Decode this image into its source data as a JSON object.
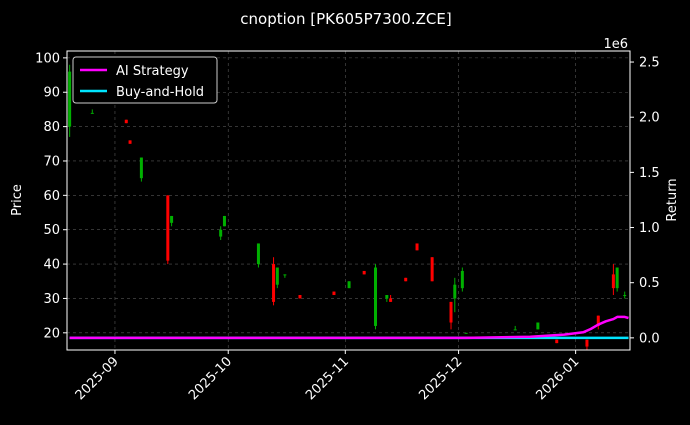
{
  "chart_data": {
    "type": "candlestick",
    "title": "cnoption [PK605P7300.ZCE]",
    "ylabel": "Price",
    "y2label": "Return",
    "y2_multiplier": "1e6",
    "ylim": [
      15,
      102
    ],
    "y2lim": [
      -0.11,
      2.6
    ],
    "yticks": [
      20,
      30,
      40,
      50,
      60,
      70,
      80,
      90,
      100
    ],
    "y2ticks": [
      0.0,
      0.5,
      1.0,
      1.5,
      2.0,
      2.5
    ],
    "y2ticklabels": [
      "0.0",
      "0.5",
      "1.0",
      "1.5",
      "2.0",
      "2.5"
    ],
    "xlim": [
      "2025-08-20",
      "2026-01-15"
    ],
    "xticks": [
      "2025-09-01",
      "2025-10-01",
      "2025-11-01",
      "2025-12-01",
      "2026-01-01"
    ],
    "xticklabels": [
      "2025-09",
      "2025-10",
      "2025-11",
      "2025-12",
      "2026-01"
    ],
    "grid": true,
    "legend_position": "top-left",
    "colors": {
      "background": "#000000",
      "up": "#00b000",
      "down": "#ff0000",
      "ai_strategy": "#ff00ff",
      "buy_and_hold": "#00e5ff",
      "grid": "#555555"
    },
    "candles": [
      {
        "date": "2025-08-20",
        "open": 80,
        "high": 98,
        "low": 77,
        "close": 96
      },
      {
        "date": "2025-08-26",
        "open": 84,
        "high": 85,
        "low": 84,
        "close": 84
      },
      {
        "date": "2025-09-04",
        "open": 82,
        "high": 82,
        "low": 81,
        "close": 81
      },
      {
        "date": "2025-09-05",
        "open": 76,
        "high": 76,
        "low": 75,
        "close": 75
      },
      {
        "date": "2025-09-08",
        "open": 65,
        "high": 71,
        "low": 64,
        "close": 71
      },
      {
        "date": "2025-09-15",
        "open": 60,
        "high": 60,
        "low": 40,
        "close": 41
      },
      {
        "date": "2025-09-16",
        "open": 52,
        "high": 54,
        "low": 51,
        "close": 54
      },
      {
        "date": "2025-09-29",
        "open": 48,
        "high": 51,
        "low": 47,
        "close": 50
      },
      {
        "date": "2025-09-30",
        "open": 51,
        "high": 54,
        "low": 51,
        "close": 54
      },
      {
        "date": "2025-10-09",
        "open": 40,
        "high": 46,
        "low": 39,
        "close": 46
      },
      {
        "date": "2025-10-13",
        "open": 40,
        "high": 42,
        "low": 28,
        "close": 29
      },
      {
        "date": "2025-10-14",
        "open": 34,
        "high": 39,
        "low": 33,
        "close": 39
      },
      {
        "date": "2025-10-16",
        "open": 37,
        "high": 37,
        "low": 36,
        "close": 37
      },
      {
        "date": "2025-10-20",
        "open": 31,
        "high": 31,
        "low": 30,
        "close": 30
      },
      {
        "date": "2025-10-29",
        "open": 32,
        "high": 32,
        "low": 31,
        "close": 31
      },
      {
        "date": "2025-11-02",
        "open": 33,
        "high": 35,
        "low": 33,
        "close": 35
      },
      {
        "date": "2025-11-06",
        "open": 38,
        "high": 38,
        "low": 37,
        "close": 37
      },
      {
        "date": "2025-11-09",
        "open": 22,
        "high": 40,
        "low": 21,
        "close": 39
      },
      {
        "date": "2025-11-12",
        "open": 30,
        "high": 31,
        "low": 29,
        "close": 31
      },
      {
        "date": "2025-11-13",
        "open": 30,
        "high": 31,
        "low": 29,
        "close": 29
      },
      {
        "date": "2025-11-17",
        "open": 36,
        "high": 36,
        "low": 35,
        "close": 35
      },
      {
        "date": "2025-11-20",
        "open": 46,
        "high": 46,
        "low": 44,
        "close": 44
      },
      {
        "date": "2025-11-24",
        "open": 42,
        "high": 42,
        "low": 35,
        "close": 35
      },
      {
        "date": "2025-11-29",
        "open": 29,
        "high": 29,
        "low": 21,
        "close": 23
      },
      {
        "date": "2025-11-30",
        "open": 30,
        "high": 36,
        "low": 26,
        "close": 34
      },
      {
        "date": "2025-12-02",
        "open": 33,
        "high": 39,
        "low": 32,
        "close": 38
      },
      {
        "date": "2025-12-03",
        "open": 20,
        "high": 20,
        "low": 20,
        "close": 20
      },
      {
        "date": "2025-12-16",
        "open": 21,
        "high": 22,
        "low": 21,
        "close": 21
      },
      {
        "date": "2025-12-22",
        "open": 21,
        "high": 23,
        "low": 21,
        "close": 23
      },
      {
        "date": "2025-12-27",
        "open": 18,
        "high": 18,
        "low": 17,
        "close": 17
      },
      {
        "date": "2026-01-04",
        "open": 18,
        "high": 18,
        "low": 15,
        "close": 16
      },
      {
        "date": "2026-01-07",
        "open": 25,
        "high": 25,
        "low": 21,
        "close": 22
      },
      {
        "date": "2026-01-11",
        "open": 37,
        "high": 40,
        "low": 31,
        "close": 33
      },
      {
        "date": "2026-01-12",
        "open": 33,
        "high": 39,
        "low": 32,
        "close": 39
      },
      {
        "date": "2026-01-14",
        "open": 31,
        "high": 32,
        "low": 30,
        "close": 31
      }
    ],
    "series": [
      {
        "name": "AI Strategy",
        "axis": "right",
        "x": [
          "2025-08-20",
          "2025-12-03",
          "2025-12-20",
          "2025-12-29",
          "2026-01-03",
          "2026-01-05",
          "2026-01-07",
          "2026-01-09",
          "2026-01-11",
          "2026-01-12",
          "2026-01-14",
          "2026-01-15"
        ],
        "values": [
          0.0,
          0.0,
          0.01,
          0.03,
          0.05,
          0.08,
          0.12,
          0.15,
          0.17,
          0.19,
          0.19,
          0.18
        ]
      },
      {
        "name": "Buy-and-Hold",
        "axis": "right",
        "x": [
          "2025-08-20",
          "2026-01-15"
        ],
        "values": [
          0.0,
          0.0
        ]
      }
    ]
  }
}
